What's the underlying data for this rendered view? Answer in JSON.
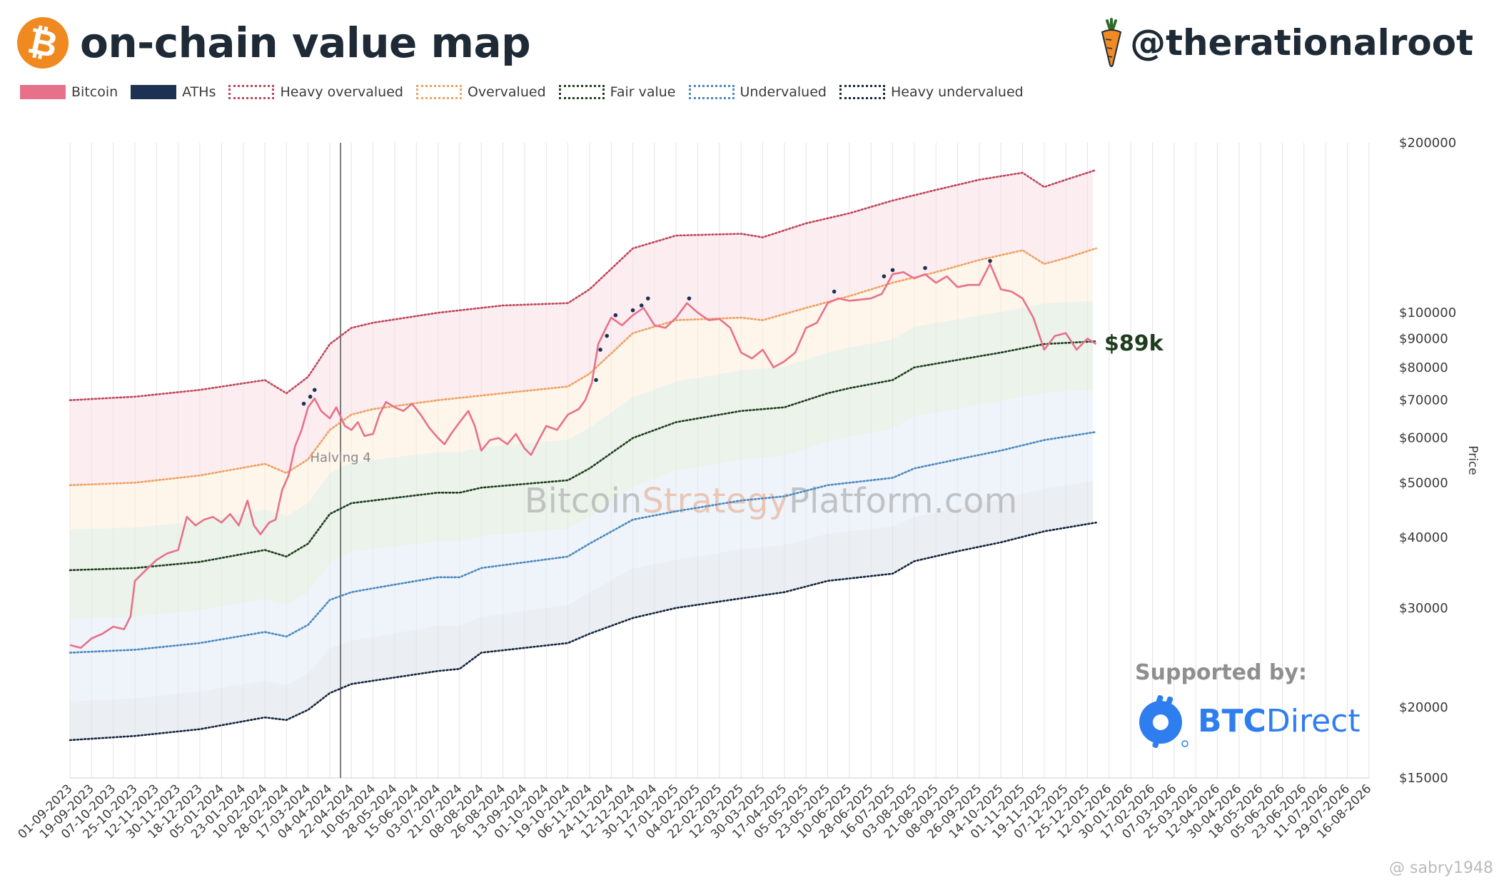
{
  "header": {
    "title": "on-chain value map",
    "logo_icon": "bitcoin-logo-icon",
    "logo_glyph": "₿",
    "handle": "@therationalroot",
    "handle_icon": "carrot-icon"
  },
  "legend": [
    {
      "label": "Bitcoin",
      "color": "#e8718a",
      "style": "solid"
    },
    {
      "label": "ATHs",
      "color": "#1d3253",
      "style": "solid"
    },
    {
      "label": "Heavy overvalued",
      "color": "#c0455a",
      "style": "dotted"
    },
    {
      "label": "Overvalued",
      "color": "#f0a060",
      "style": "dotted"
    },
    {
      "label": "Fair value",
      "color": "#1e3d1e",
      "style": "dotted"
    },
    {
      "label": "Undervalued",
      "color": "#4a88bf",
      "style": "dotted"
    },
    {
      "label": "Heavy undervalued",
      "color": "#14253c",
      "style": "dotted"
    }
  ],
  "watermark": {
    "part1": "Bitcoin",
    "part2": "Strategy",
    "part3": "Platform.com"
  },
  "price_label": "$89k",
  "sponsor": {
    "heading": "Supported by:",
    "brand_bold": "BTC",
    "brand_light": "Direct",
    "icon": "btcdirect-logo-icon"
  },
  "footer_credit": "@ sabry1948",
  "chart_data": {
    "type": "line",
    "scale": "log",
    "ylabel": "Price",
    "ylim": [
      15000,
      200000
    ],
    "yticks": [
      15000,
      20000,
      30000,
      40000,
      50000,
      60000,
      70000,
      80000,
      90000,
      100000,
      200000
    ],
    "ytick_labels": [
      "$15000",
      "$20000",
      "$30000",
      "$40000",
      "$50000",
      "$60000",
      "$70000",
      "$80000",
      "$90000",
      "$100000",
      "$200000"
    ],
    "x_labels": [
      "01-09-2023",
      "19-09-2023",
      "07-10-2023",
      "25-10-2023",
      "12-11-2023",
      "30-11-2023",
      "18-12-2023",
      "05-01-2024",
      "23-01-2024",
      "10-02-2024",
      "28-02-2024",
      "17-03-2024",
      "04-04-2024",
      "22-04-2024",
      "10-05-2024",
      "28-05-2024",
      "15-06-2024",
      "03-07-2024",
      "21-07-2024",
      "08-08-2024",
      "26-08-2024",
      "13-09-2024",
      "01-10-2024",
      "19-10-2024",
      "06-11-2024",
      "24-11-2024",
      "12-12-2024",
      "30-12-2024",
      "17-01-2025",
      "04-02-2025",
      "22-02-2025",
      "12-03-2025",
      "30-03-2025",
      "17-04-2025",
      "05-05-2025",
      "23-05-2025",
      "10-06-2025",
      "28-06-2025",
      "16-07-2025",
      "03-08-2025",
      "21-08-2025",
      "08-09-2025",
      "26-09-2025",
      "14-10-2025",
      "01-11-2025",
      "19-11-2025",
      "07-12-2025",
      "25-12-2025",
      "12-01-2026",
      "30-01-2026",
      "17-02-2026",
      "07-03-2026",
      "25-03-2026",
      "12-04-2026",
      "30-04-2026",
      "18-05-2026",
      "05-06-2026",
      "23-06-2026",
      "11-07-2026",
      "29-07-2026",
      "16-08-2026"
    ],
    "annotation": {
      "label": "Halving 4",
      "at_index": 12.5
    },
    "last_data_index": 47.4,
    "series": [
      {
        "name": "Heavy overvalued",
        "color": "#c0455a",
        "style": "dotted",
        "points": [
          [
            0,
            70000
          ],
          [
            3,
            71000
          ],
          [
            6,
            73000
          ],
          [
            9,
            76000
          ],
          [
            10,
            72000
          ],
          [
            11,
            77000
          ],
          [
            12,
            88000
          ],
          [
            13,
            94000
          ],
          [
            14,
            96000
          ],
          [
            17,
            100000
          ],
          [
            20,
            103000
          ],
          [
            23,
            104000
          ],
          [
            24,
            110000
          ],
          [
            26,
            130000
          ],
          [
            28,
            137000
          ],
          [
            31,
            138000
          ],
          [
            32,
            136000
          ],
          [
            34,
            144000
          ],
          [
            36,
            150000
          ],
          [
            38,
            158000
          ],
          [
            40,
            165000
          ],
          [
            42,
            172000
          ],
          [
            44,
            177000
          ],
          [
            45,
            167000
          ],
          [
            46,
            172000
          ],
          [
            47.4,
            179000
          ]
        ]
      },
      {
        "name": "Overvalued",
        "color": "#f0a060",
        "style": "dotted",
        "points": [
          [
            0,
            49500
          ],
          [
            3,
            50000
          ],
          [
            6,
            51500
          ],
          [
            9,
            54000
          ],
          [
            10,
            52000
          ],
          [
            11,
            55000
          ],
          [
            12,
            62000
          ],
          [
            13,
            66000
          ],
          [
            14,
            67500
          ],
          [
            17,
            70000
          ],
          [
            20,
            72000
          ],
          [
            23,
            74000
          ],
          [
            24,
            78000
          ],
          [
            26,
            92000
          ],
          [
            28,
            97000
          ],
          [
            31,
            98000
          ],
          [
            32,
            97000
          ],
          [
            34,
            102000
          ],
          [
            36,
            107000
          ],
          [
            38,
            113000
          ],
          [
            40,
            118000
          ],
          [
            42,
            124000
          ],
          [
            44,
            129000
          ],
          [
            45,
            122000
          ],
          [
            46,
            125000
          ],
          [
            47.4,
            130000
          ]
        ]
      },
      {
        "name": "Fair value",
        "color": "#1e3d1e",
        "style": "dotted",
        "points": [
          [
            0,
            35000
          ],
          [
            3,
            35300
          ],
          [
            6,
            36200
          ],
          [
            9,
            38000
          ],
          [
            10,
            37000
          ],
          [
            11,
            39000
          ],
          [
            12,
            44000
          ],
          [
            13,
            46000
          ],
          [
            14,
            46500
          ],
          [
            17,
            48000
          ],
          [
            18,
            48000
          ],
          [
            19,
            49000
          ],
          [
            23,
            50500
          ],
          [
            24,
            53000
          ],
          [
            26,
            60000
          ],
          [
            28,
            64000
          ],
          [
            31,
            67000
          ],
          [
            33,
            68000
          ],
          [
            35,
            72000
          ],
          [
            36,
            73500
          ],
          [
            38,
            76000
          ],
          [
            39,
            80000
          ],
          [
            41,
            82500
          ],
          [
            43,
            85000
          ],
          [
            45,
            88000
          ],
          [
            47.4,
            89000
          ]
        ]
      },
      {
        "name": "Undervalued",
        "color": "#4a88bf",
        "style": "dotted",
        "points": [
          [
            0,
            25000
          ],
          [
            3,
            25300
          ],
          [
            6,
            26000
          ],
          [
            9,
            27200
          ],
          [
            10,
            26700
          ],
          [
            11,
            28000
          ],
          [
            12,
            31000
          ],
          [
            13,
            32000
          ],
          [
            14,
            32500
          ],
          [
            17,
            34000
          ],
          [
            18,
            34000
          ],
          [
            19,
            35300
          ],
          [
            23,
            37000
          ],
          [
            24,
            39000
          ],
          [
            26,
            43000
          ],
          [
            28,
            44500
          ],
          [
            31,
            46500
          ],
          [
            33,
            47300
          ],
          [
            35,
            49500
          ],
          [
            38,
            51000
          ],
          [
            39,
            53000
          ],
          [
            41,
            55000
          ],
          [
            43,
            57000
          ],
          [
            45,
            59500
          ],
          [
            47.4,
            61500
          ]
        ]
      },
      {
        "name": "Heavy undervalued",
        "color": "#14253c",
        "style": "dotted",
        "points": [
          [
            0,
            17500
          ],
          [
            3,
            17800
          ],
          [
            6,
            18300
          ],
          [
            9,
            19200
          ],
          [
            10,
            19000
          ],
          [
            11,
            19800
          ],
          [
            12,
            21200
          ],
          [
            13,
            22000
          ],
          [
            14,
            22300
          ],
          [
            17,
            23200
          ],
          [
            18,
            23400
          ],
          [
            19,
            25000
          ],
          [
            23,
            26000
          ],
          [
            24,
            27000
          ],
          [
            26,
            28800
          ],
          [
            28,
            30000
          ],
          [
            31,
            31200
          ],
          [
            33,
            32000
          ],
          [
            35,
            33500
          ],
          [
            38,
            34500
          ],
          [
            39,
            36300
          ],
          [
            41,
            37800
          ],
          [
            43,
            39200
          ],
          [
            45,
            41000
          ],
          [
            47.4,
            42500
          ]
        ]
      },
      {
        "name": "Bitcoin",
        "color": "#e8718a",
        "style": "solid",
        "points": [
          [
            0,
            25800
          ],
          [
            0.5,
            25500
          ],
          [
            1,
            26500
          ],
          [
            1.5,
            27000
          ],
          [
            2,
            27800
          ],
          [
            2.5,
            27500
          ],
          [
            2.8,
            29000
          ],
          [
            3,
            33500
          ],
          [
            3.5,
            35000
          ],
          [
            4,
            36500
          ],
          [
            4.5,
            37500
          ],
          [
            5,
            38000
          ],
          [
            5.4,
            43500
          ],
          [
            5.8,
            42000
          ],
          [
            6.2,
            43000
          ],
          [
            6.6,
            43500
          ],
          [
            7,
            42500
          ],
          [
            7.4,
            44000
          ],
          [
            7.8,
            42000
          ],
          [
            8.2,
            46500
          ],
          [
            8.5,
            42000
          ],
          [
            8.8,
            40500
          ],
          [
            9.2,
            42500
          ],
          [
            9.5,
            43000
          ],
          [
            9.8,
            48500
          ],
          [
            10.1,
            51500
          ],
          [
            10.4,
            58000
          ],
          [
            10.7,
            62000
          ],
          [
            11,
            68000
          ],
          [
            11.3,
            70500
          ],
          [
            11.6,
            67000
          ],
          [
            12,
            65000
          ],
          [
            12.3,
            68000
          ],
          [
            12.7,
            63000
          ],
          [
            13,
            62000
          ],
          [
            13.3,
            64000
          ],
          [
            13.6,
            60500
          ],
          [
            14,
            61000
          ],
          [
            14.3,
            66000
          ],
          [
            14.6,
            69500
          ],
          [
            15,
            68000
          ],
          [
            15.4,
            67000
          ],
          [
            15.8,
            69000
          ],
          [
            16.2,
            66000
          ],
          [
            16.6,
            62500
          ],
          [
            17,
            60000
          ],
          [
            17.3,
            58500
          ],
          [
            17.6,
            61000
          ],
          [
            18,
            64000
          ],
          [
            18.4,
            67000
          ],
          [
            18.7,
            63000
          ],
          [
            19,
            57000
          ],
          [
            19.4,
            59500
          ],
          [
            19.8,
            60000
          ],
          [
            20.2,
            58500
          ],
          [
            20.6,
            61000
          ],
          [
            21,
            57500
          ],
          [
            21.3,
            56000
          ],
          [
            21.7,
            60000
          ],
          [
            22,
            63000
          ],
          [
            22.5,
            62000
          ],
          [
            23,
            66000
          ],
          [
            23.5,
            67500
          ],
          [
            23.8,
            70000
          ],
          [
            24.1,
            75000
          ],
          [
            24.4,
            88000
          ],
          [
            24.7,
            93000
          ],
          [
            25,
            98000
          ],
          [
            25.5,
            95000
          ],
          [
            26,
            99000
          ],
          [
            26.5,
            102000
          ],
          [
            27,
            95000
          ],
          [
            27.5,
            94000
          ],
          [
            28,
            98000
          ],
          [
            28.5,
            104000
          ],
          [
            29,
            100000
          ],
          [
            29.5,
            97000
          ],
          [
            30,
            97500
          ],
          [
            30.5,
            94000
          ],
          [
            31,
            85000
          ],
          [
            31.5,
            83000
          ],
          [
            32,
            86000
          ],
          [
            32.5,
            80000
          ],
          [
            33,
            82000
          ],
          [
            33.5,
            85000
          ],
          [
            34,
            94000
          ],
          [
            34.5,
            96000
          ],
          [
            35,
            104000
          ],
          [
            35.5,
            106000
          ],
          [
            36,
            105000
          ],
          [
            36.5,
            105500
          ],
          [
            37,
            106000
          ],
          [
            37.5,
            108000
          ],
          [
            38,
            117000
          ],
          [
            38.5,
            118000
          ],
          [
            39,
            115000
          ],
          [
            39.5,
            117000
          ],
          [
            40,
            113000
          ],
          [
            40.5,
            116000
          ],
          [
            41,
            111000
          ],
          [
            41.5,
            112000
          ],
          [
            42,
            112000
          ],
          [
            42.5,
            122000
          ],
          [
            43,
            110000
          ],
          [
            43.5,
            109000
          ],
          [
            44,
            106000
          ],
          [
            44.5,
            98000
          ],
          [
            45,
            86000
          ],
          [
            45.5,
            91000
          ],
          [
            46,
            92000
          ],
          [
            46.5,
            86000
          ],
          [
            47,
            90000
          ],
          [
            47.4,
            88000
          ]
        ]
      },
      {
        "name": "ATHs",
        "color": "#1d3253",
        "style": "marker",
        "points": [
          [
            10.8,
            69000
          ],
          [
            11.1,
            71000
          ],
          [
            11.3,
            73000
          ],
          [
            24.3,
            76000
          ],
          [
            24.5,
            86000
          ],
          [
            24.8,
            91000
          ],
          [
            25.2,
            99000
          ],
          [
            26,
            101000
          ],
          [
            26.4,
            103000
          ],
          [
            26.7,
            106000
          ],
          [
            28.6,
            106000
          ],
          [
            35.3,
            109000
          ],
          [
            37.6,
            116000
          ],
          [
            38,
            119000
          ],
          [
            39.5,
            120000
          ],
          [
            42.5,
            123500
          ]
        ]
      }
    ]
  }
}
